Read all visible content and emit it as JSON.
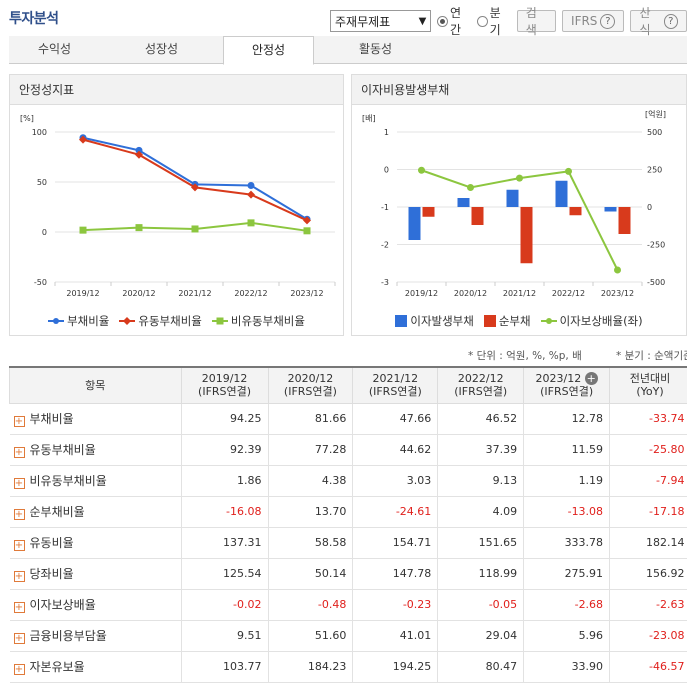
{
  "header": {
    "title": "투자분석",
    "select_value": "주재무제표",
    "radio_annual": "연간",
    "radio_quarter": "분기",
    "search_label": "검색",
    "ifrs_label": "IFRS",
    "formula_label": "산식"
  },
  "tabs": [
    {
      "label": "수익성"
    },
    {
      "label": "성장성"
    },
    {
      "label": "안정성"
    },
    {
      "label": "활동성"
    }
  ],
  "left_panel": {
    "title": "안정성지표",
    "unit": "[%]",
    "legend": [
      "부채비율",
      "유동부채비율",
      "비유동부채비율"
    ]
  },
  "right_panel": {
    "title": "이자비용발생부채",
    "left_unit": "[배]",
    "right_unit": "[억원]",
    "legend": [
      "이자발생부채",
      "순부채",
      "이자보상배율(좌)"
    ]
  },
  "colors": {
    "blue": "#2f6fd8",
    "red": "#d83a1c",
    "green": "#8cc63f"
  },
  "chart_data": [
    {
      "type": "line",
      "title": "안정성지표",
      "categories": [
        "2019/12",
        "2020/12",
        "2021/12",
        "2022/12",
        "2023/12"
      ],
      "ylabel": "[%]",
      "ylim": [
        -50,
        100
      ],
      "yticks": [
        100,
        50,
        0,
        -50
      ],
      "series": [
        {
          "name": "부채비율",
          "values": [
            94.25,
            81.66,
            47.66,
            46.52,
            12.78
          ]
        },
        {
          "name": "유동부채비율",
          "values": [
            92.39,
            77.28,
            44.62,
            37.39,
            11.59
          ]
        },
        {
          "name": "비유동부채비율",
          "values": [
            1.86,
            4.38,
            3.03,
            9.13,
            1.19
          ]
        }
      ],
      "legend": "bottom"
    },
    {
      "type": "bar",
      "title": "이자비용발생부채",
      "categories": [
        "2019/12",
        "2020/12",
        "2021/12",
        "2022/12",
        "2023/12"
      ],
      "ylabel_left": "[배]",
      "ylabel_right": "[억원]",
      "ylim_left": [
        -3,
        1
      ],
      "yticks_left": [
        1,
        0,
        -1,
        -2,
        -3
      ],
      "ylim_right": [
        -500,
        500
      ],
      "yticks_right": [
        500,
        250,
        0,
        -250,
        -500
      ],
      "series": [
        {
          "name": "이자발생부채",
          "axis": "right",
          "values": [
            -220,
            60,
            115,
            175,
            -30
          ]
        },
        {
          "name": "순부채",
          "axis": "right",
          "values": [
            -65,
            -120,
            -375,
            -55,
            -180
          ]
        },
        {
          "name": "이자보상배율(좌)",
          "axis": "left",
          "type": "line",
          "values": [
            -0.02,
            -0.48,
            -0.23,
            -0.05,
            -2.68
          ]
        }
      ],
      "legend": "bottom"
    }
  ],
  "table": {
    "notes": [
      "* 단위 : 억원, %, %p, 배",
      "* 분기 : 순액기준"
    ],
    "header_item": "항목",
    "columns": [
      {
        "line1": "2019/12",
        "line2": "(IFRS연결)"
      },
      {
        "line1": "2020/12",
        "line2": "(IFRS연결)"
      },
      {
        "line1": "2021/12",
        "line2": "(IFRS연결)"
      },
      {
        "line1": "2022/12",
        "line2": "(IFRS연결)"
      },
      {
        "line1": "2023/12",
        "line2": "(IFRS연결)"
      },
      {
        "line1": "전년대비",
        "line2": "(YoY)"
      }
    ],
    "rows": [
      {
        "label": "부채비율",
        "values": [
          "94.25",
          "81.66",
          "47.66",
          "46.52",
          "12.78",
          "-33.74"
        ]
      },
      {
        "label": "유동부채비율",
        "values": [
          "92.39",
          "77.28",
          "44.62",
          "37.39",
          "11.59",
          "-25.80"
        ]
      },
      {
        "label": "비유동부채비율",
        "values": [
          "1.86",
          "4.38",
          "3.03",
          "9.13",
          "1.19",
          "-7.94"
        ]
      },
      {
        "label": "순부채비율",
        "values": [
          "-16.08",
          "13.70",
          "-24.61",
          "4.09",
          "-13.08",
          "-17.18"
        ]
      },
      {
        "label": "유동비율",
        "values": [
          "137.31",
          "58.58",
          "154.71",
          "151.65",
          "333.78",
          "182.14"
        ]
      },
      {
        "label": "당좌비율",
        "values": [
          "125.54",
          "50.14",
          "147.78",
          "118.99",
          "275.91",
          "156.92"
        ]
      },
      {
        "label": "이자보상배율",
        "values": [
          "-0.02",
          "-0.48",
          "-0.23",
          "-0.05",
          "-2.68",
          "-2.63"
        ]
      },
      {
        "label": "금융비용부담율",
        "values": [
          "9.51",
          "51.60",
          "41.01",
          "29.04",
          "5.96",
          "-23.08"
        ]
      },
      {
        "label": "자본유보율",
        "values": [
          "103.77",
          "184.23",
          "194.25",
          "80.47",
          "33.90",
          "-46.57"
        ]
      }
    ]
  }
}
